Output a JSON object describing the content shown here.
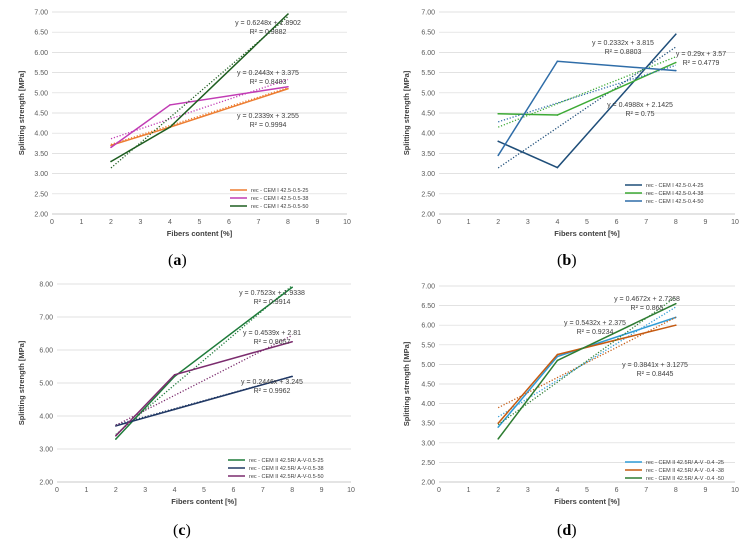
{
  "chart_data": [
    {
      "type": "line",
      "panel_label": "(a)",
      "panel_letter": "a",
      "xlabel": "Fibers content [%]",
      "ylabel": "Splitting strength [MPa]",
      "xlim": [
        0,
        10
      ],
      "ylim": [
        2.0,
        7.0
      ],
      "xticks": [
        0,
        1,
        2,
        3,
        4,
        5,
        6,
        7,
        8,
        9,
        10
      ],
      "yticks": [
        2.0,
        2.5,
        3.0,
        3.5,
        4.0,
        4.5,
        5.0,
        5.5,
        6.0,
        6.5,
        7.0
      ],
      "ytick_labels": [
        "2.00",
        "2.50",
        "3.00",
        "3.50",
        "4.00",
        "4.50",
        "5.00",
        "5.50",
        "6.00",
        "6.50",
        "7.00"
      ],
      "legend_position": "bottom-right",
      "series": [
        {
          "name": "rec - CEM I 42.5-0.5-25",
          "color": "#ED7D31",
          "x": [
            2,
            4,
            8
          ],
          "y": [
            3.7,
            4.15,
            5.1
          ],
          "trend": {
            "slope": 0.2339,
            "intercept": 3.255
          },
          "equation": "y = 0.2339x + 3.255",
          "r2": "R² = 0.9994"
        },
        {
          "name": "rec - CEM I 42.5-0.5-38",
          "color": "#C13BB4",
          "x": [
            2,
            4,
            8
          ],
          "y": [
            3.65,
            4.7,
            5.15
          ],
          "trend": {
            "slope": 0.2443,
            "intercept": 3.375
          },
          "equation": "y = 0.2443x + 3.375",
          "r2": "R² = 0.8483"
        },
        {
          "name": "rec - CEM I 42.5-0.5-50",
          "color": "#1E5E20",
          "x": [
            2,
            4,
            8
          ],
          "y": [
            3.3,
            4.15,
            6.95
          ],
          "trend": {
            "slope": 0.6248,
            "intercept": 1.8902
          },
          "equation": "y = 0.6248x + 1.8902",
          "r2": "R² = 0.9882"
        }
      ]
    },
    {
      "type": "line",
      "panel_label": "(b)",
      "panel_letter": "b",
      "xlabel": "Fibers content [%]",
      "ylabel": "Splitting strength [MPa]",
      "xlim": [
        0,
        10
      ],
      "ylim": [
        2.0,
        7.0
      ],
      "xticks": [
        0,
        1,
        2,
        3,
        4,
        5,
        6,
        7,
        8,
        9,
        10
      ],
      "yticks": [
        2.0,
        2.5,
        3.0,
        3.5,
        4.0,
        4.5,
        5.0,
        5.5,
        6.0,
        6.5,
        7.0
      ],
      "ytick_labels": [
        "2.00",
        "2.50",
        "3.00",
        "3.50",
        "4.00",
        "4.50",
        "5.00",
        "5.50",
        "6.00",
        "6.50",
        "7.00"
      ],
      "legend_position": "bottom-right",
      "series": [
        {
          "name": "rec - CEM I 42.5-0.4-25",
          "color": "#1F4E79",
          "x": [
            2,
            4,
            8
          ],
          "y": [
            3.8,
            3.15,
            6.45
          ],
          "trend": {
            "slope": 0.4988,
            "intercept": 2.1425
          },
          "equation": "y = 0.4988x + 2.1425",
          "r2": "R² = 0.75"
        },
        {
          "name": "rec - CEM I 42.5-0.4-38",
          "color": "#3DAA35",
          "x": [
            2,
            4,
            8
          ],
          "y": [
            4.48,
            4.45,
            5.75
          ],
          "trend": {
            "slope": 0.29,
            "intercept": 3.57
          },
          "equation": "y = 0.29x + 3.57",
          "r2": "R² = 0.4779"
        },
        {
          "name": "rec - CEM I 42.5-0.4-50",
          "color": "#2F6DA8",
          "x": [
            2,
            4,
            8
          ],
          "y": [
            3.45,
            5.78,
            5.55
          ],
          "trend": {
            "slope": 0.2332,
            "intercept": 3.815
          },
          "equation": "y = 0.2332x + 3.815",
          "r2": "R² = 0.8803"
        }
      ]
    },
    {
      "type": "line",
      "panel_label": "(c)",
      "panel_letter": "c",
      "xlabel": "Fibers content [%]",
      "ylabel": "Splitting strength [MPa]",
      "xlim": [
        0,
        10
      ],
      "ylim": [
        2.0,
        8.0
      ],
      "xticks": [
        0,
        1,
        2,
        3,
        4,
        5,
        6,
        7,
        8,
        9,
        10
      ],
      "yticks": [
        2.0,
        3.0,
        4.0,
        5.0,
        6.0,
        7.0,
        8.0
      ],
      "ytick_labels": [
        "2.00",
        "3.00",
        "4.00",
        "5.00",
        "6.00",
        "7.00",
        "8.00"
      ],
      "legend_position": "bottom-right",
      "series": [
        {
          "name": "rec - CEM II 42.5R/ A-V-0.5-25",
          "color": "#1E7B3A",
          "x": [
            2,
            4,
            8
          ],
          "y": [
            3.3,
            5.2,
            7.9
          ],
          "trend": {
            "slope": 0.7523,
            "intercept": 1.9338
          },
          "equation": "y = 0.7523x + 1.9338",
          "r2": "R² = 0.9914"
        },
        {
          "name": "rec - CEM II 42.5R/ A-V-0.5-38",
          "color": "#203864",
          "x": [
            2,
            4,
            8
          ],
          "y": [
            3.7,
            4.2,
            5.2
          ],
          "trend": {
            "slope": 0.2446,
            "intercept": 3.245
          },
          "equation": "y = 0.2446x + 3.245",
          "r2": "R² = 0.9962"
        },
        {
          "name": "rec - CEM II 42.5R/ A-V-0.5-50",
          "color": "#7B2C6E",
          "x": [
            2,
            4,
            8
          ],
          "y": [
            3.4,
            5.25,
            6.25
          ],
          "trend": {
            "slope": 0.4539,
            "intercept": 2.81
          },
          "equation": "y = 0.4539x + 2.81",
          "r2": "R² = 0.8657"
        }
      ]
    },
    {
      "type": "line",
      "panel_label": "(d)",
      "panel_letter": "d",
      "xlabel": "Fibers content [%]",
      "ylabel": "Splitting strength [MPa]",
      "xlim": [
        0,
        10
      ],
      "ylim": [
        2.0,
        7.0
      ],
      "xticks": [
        0,
        1,
        2,
        3,
        4,
        5,
        6,
        7,
        8,
        9,
        10
      ],
      "yticks": [
        2.0,
        2.5,
        3.0,
        3.5,
        4.0,
        4.5,
        5.0,
        5.5,
        6.0,
        6.5,
        7.0
      ],
      "ytick_labels": [
        "2.00",
        "2.50",
        "3.00",
        "3.50",
        "4.00",
        "4.50",
        "5.00",
        "5.50",
        "6.00",
        "6.50",
        "7.00"
      ],
      "legend_position": "bottom-right",
      "series": [
        {
          "name": "rec - CEM II 42.5R/ A-V -0.4 -25",
          "color": "#2E9BD6",
          "x": [
            2,
            4,
            8
          ],
          "y": [
            3.4,
            5.2,
            6.2
          ],
          "trend": {
            "slope": 0.4672,
            "intercept": 2.7268
          },
          "equation": "y = 0.4672x + 2.7268",
          "r2": "R² = 0.865"
        },
        {
          "name": "rec - CEM II 42.5R/ A-V -0.4 -38",
          "color": "#C55A11",
          "x": [
            2,
            4,
            8
          ],
          "y": [
            3.5,
            5.25,
            6.0
          ],
          "trend": {
            "slope": 0.3841,
            "intercept": 3.1275
          },
          "equation": "y = 0.3841x + 3.1275",
          "r2": "R² = 0.8445"
        },
        {
          "name": "rec - CEM II 42.5R/ A-V -0.4 -50",
          "color": "#2E7D32",
          "x": [
            2,
            4,
            8
          ],
          "y": [
            3.1,
            5.1,
            6.55
          ],
          "trend": {
            "slope": 0.5432,
            "intercept": 2.375
          },
          "equation": "y = 0.5432x + 2.375",
          "r2": "R² = 0.9234"
        }
      ]
    }
  ]
}
